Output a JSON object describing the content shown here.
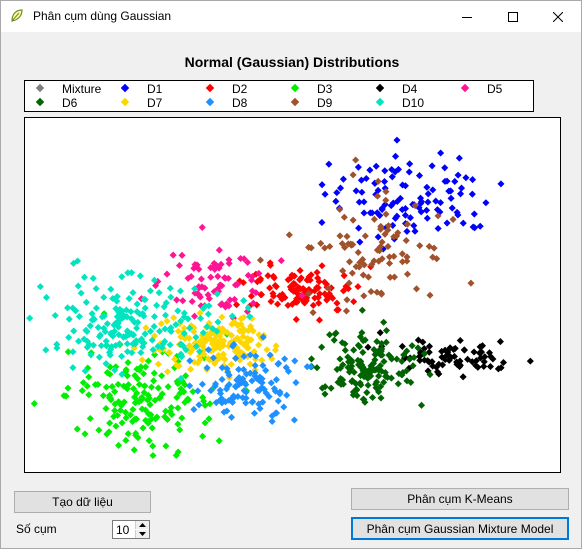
{
  "window": {
    "title": "Phân cụm dùng Gaussian",
    "icon": "leaf-app-icon",
    "minimize_icon": "minimize-icon",
    "maximize_icon": "maximize-icon",
    "close_icon": "close-icon"
  },
  "chart_title": "Normal (Gaussian) Distributions",
  "legend": [
    {
      "name": "Mixture",
      "color": "#808080"
    },
    {
      "name": "D1",
      "color": "#0000ff"
    },
    {
      "name": "D2",
      "color": "#ff0000"
    },
    {
      "name": "D3",
      "color": "#00ee00"
    },
    {
      "name": "D4",
      "color": "#000000"
    },
    {
      "name": "D5",
      "color": "#ff1493"
    },
    {
      "name": "D6",
      "color": "#006400"
    },
    {
      "name": "D7",
      "color": "#ffd700"
    },
    {
      "name": "D8",
      "color": "#1e90ff"
    },
    {
      "name": "D9",
      "color": "#a0522d"
    },
    {
      "name": "D10",
      "color": "#00e5c0"
    }
  ],
  "chart_data": {
    "type": "scatter",
    "title": "Normal (Gaussian) Distributions",
    "xlim": [
      0,
      1
    ],
    "ylim": [
      0,
      1
    ],
    "grid": false,
    "legend_position": "top",
    "series": [
      {
        "name": "D1",
        "color": "#0000ff",
        "center": [
          0.72,
          0.22
        ],
        "spread": [
          0.08,
          0.06
        ],
        "count": 110
      },
      {
        "name": "D2",
        "color": "#ff0000",
        "center": [
          0.51,
          0.49
        ],
        "spread": [
          0.05,
          0.035
        ],
        "count": 110
      },
      {
        "name": "D3",
        "color": "#00ee00",
        "center": [
          0.22,
          0.79
        ],
        "spread": [
          0.07,
          0.07
        ],
        "count": 170
      },
      {
        "name": "D4",
        "color": "#000000",
        "center": [
          0.8,
          0.67
        ],
        "spread": [
          0.06,
          0.025
        ],
        "count": 75
      },
      {
        "name": "D5",
        "color": "#ff1493",
        "center": [
          0.36,
          0.47
        ],
        "spread": [
          0.05,
          0.04
        ],
        "count": 75
      },
      {
        "name": "D6",
        "color": "#006400",
        "center": [
          0.64,
          0.7
        ],
        "spread": [
          0.05,
          0.055
        ],
        "count": 140
      },
      {
        "name": "D7",
        "color": "#ffd700",
        "center": [
          0.35,
          0.64
        ],
        "spread": [
          0.05,
          0.04
        ],
        "count": 170
      },
      {
        "name": "D8",
        "color": "#1e90ff",
        "center": [
          0.42,
          0.75
        ],
        "spread": [
          0.05,
          0.05
        ],
        "count": 110
      },
      {
        "name": "D9",
        "color": "#a0522d",
        "center": [
          0.65,
          0.37
        ],
        "spread": [
          0.07,
          0.08
        ],
        "count": 90
      },
      {
        "name": "D10",
        "color": "#00e5c0",
        "center": [
          0.2,
          0.58
        ],
        "spread": [
          0.08,
          0.06
        ],
        "count": 190
      }
    ]
  },
  "controls": {
    "generate_button": "Tạo dữ liệu",
    "kmeans_button": "Phân cụm K-Means",
    "gmm_button": "Phân cụm Gaussian Mixture Model",
    "cluster_label": "Số cụm",
    "cluster_value": "10"
  }
}
